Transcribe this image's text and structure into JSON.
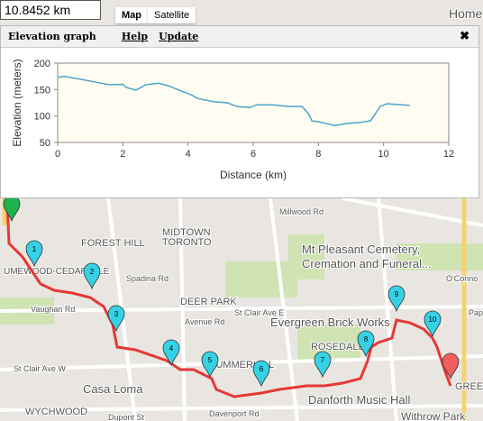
{
  "distance_box": "10.8452 km",
  "map_tabs": [
    "Map",
    "Satellite"
  ],
  "panel": {
    "title": "Elevation graph",
    "help": "Help",
    "update": "Update",
    "close": "✖"
  },
  "chart_data": {
    "type": "line",
    "x_label": "Distance (km)",
    "y_label": "Elevation (meters)",
    "x": [
      0,
      0.2,
      1.0,
      1.6,
      2.0,
      2.1,
      2.4,
      2.7,
      3.1,
      3.4,
      3.8,
      4.1,
      4.3,
      4.8,
      5.2,
      5.5,
      5.9,
      6.1,
      6.6,
      7.1,
      7.5,
      7.7,
      7.8,
      8.1,
      8.5,
      8.9,
      9.3,
      9.6,
      9.9,
      10.1,
      10.6,
      10.8
    ],
    "series": [
      {
        "name": "Elevation",
        "color": "#4aa3c8",
        "values": [
          173,
          175,
          166,
          159,
          160,
          154,
          149,
          159,
          162,
          157,
          147,
          140,
          133,
          127,
          125,
          118,
          116,
          121,
          121,
          118,
          118,
          104,
          91,
          88,
          82,
          86,
          88,
          91,
          118,
          123,
          121,
          120
        ]
      }
    ],
    "xlim": [
      0,
      12
    ],
    "xticks": [
      0,
      2,
      4,
      6,
      8,
      10,
      12
    ],
    "ylim": [
      50,
      200
    ],
    "yticks": [
      50,
      100,
      150,
      200
    ],
    "grid": false
  },
  "map": {
    "labels": [
      "Home",
      "FOREST HILL",
      "MIDTOWN",
      "TORONTO",
      "Mt Pleasant Cemetery,",
      "Cremation and Funeral...",
      "UMEWOOD-CEDARVALE",
      "Vaughan Rd",
      "Spadina Rd",
      "DEER PARK",
      "Avenue Rd",
      "St Clair Ave E",
      "Evergreen Brick Works",
      "ROSEDALE",
      "St Clair Ave W",
      "SUMMERHILL",
      "Casa Loma",
      "Danforth Music Hall",
      "WYCHWOOD",
      "Dupont St",
      "Davenport Rd",
      "Withrow Park",
      "Millwood Rd",
      "O'Conno",
      "Pape Av",
      "GREE"
    ],
    "markers": [
      "1",
      "2",
      "3",
      "4",
      "5",
      "6",
      "7",
      "8",
      "9",
      "10"
    ]
  }
}
